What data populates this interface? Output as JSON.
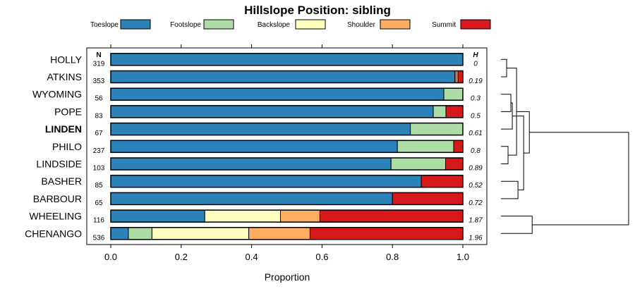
{
  "chart_data": {
    "type": "bar",
    "orientation": "horizontal",
    "stacked": true,
    "title": "Hillslope Position: sibling",
    "xlabel": "Proportion",
    "ylabel": "",
    "xlim": [
      0,
      1
    ],
    "x_ticks": [
      "0.0",
      "0.2",
      "0.4",
      "0.6",
      "0.8",
      "1.0"
    ],
    "x_tick_values": [
      0,
      0.2,
      0.4,
      0.6,
      0.8,
      1.0
    ],
    "n_header": "N",
    "h_header": "H",
    "legend_position": "top",
    "series": [
      {
        "name": "Toeslope",
        "color": "#2b83ba",
        "values": [
          1.0,
          0.977,
          0.946,
          0.916,
          0.851,
          0.814,
          0.796,
          0.882,
          0.8,
          0.267,
          0.05
        ]
      },
      {
        "name": "Footslope",
        "color": "#abdda4",
        "values": [
          0,
          0,
          0.054,
          0.036,
          0.149,
          0.16,
          0.155,
          0,
          0,
          0,
          0.067
        ]
      },
      {
        "name": "Backslope",
        "color": "#ffffbf",
        "values": [
          0,
          0.003,
          0,
          0,
          0,
          0,
          0,
          0,
          0,
          0.215,
          0.275
        ]
      },
      {
        "name": "Shoulder",
        "color": "#fdae61",
        "values": [
          0,
          0.006,
          0,
          0,
          0,
          0,
          0,
          0,
          0,
          0.112,
          0.174
        ]
      },
      {
        "name": "Summit",
        "color": "#d7191c",
        "values": [
          0,
          0.014,
          0,
          0.048,
          0,
          0.026,
          0.049,
          0.118,
          0.2,
          0.406,
          0.434
        ]
      }
    ],
    "categories": [
      "HOLLY",
      "ATKINS",
      "WYOMING",
      "POPE",
      "LINDEN",
      "PHILO",
      "LINDSIDE",
      "BASHER",
      "BARBOUR",
      "WHEELING",
      "CHENANGO"
    ],
    "bold_category": "LINDEN",
    "n": [
      "319",
      "353",
      "56",
      "83",
      "67",
      "237",
      "103",
      "85",
      "65",
      "116",
      "536"
    ],
    "h": [
      "0",
      "0.19",
      "0.3",
      "0.5",
      "0.61",
      "0.8",
      "0.89",
      "0.52",
      "0.72",
      "1.87",
      "1.96"
    ],
    "dendrogram": {
      "leaf_order": [
        0,
        1,
        2,
        3,
        4,
        5,
        6,
        7,
        8,
        9,
        10
      ],
      "merges": [
        {
          "left": 0,
          "right": 1,
          "height": 0.04
        },
        {
          "left": 2,
          "right": 3,
          "height": 0.07
        },
        {
          "left": 5,
          "right": 6,
          "height": 0.05
        },
        {
          "left": 4,
          "right": 12,
          "height": 0.08
        },
        {
          "left": 7,
          "right": 8,
          "height": 0.12
        },
        {
          "left": 9,
          "right": 10,
          "height": 0.22
        },
        {
          "left": 11,
          "right": 13,
          "height": 0.11
        },
        {
          "left": 14,
          "right": 15,
          "height": 0.16
        },
        {
          "left": 17,
          "right": 18,
          "height": 0.2
        },
        {
          "left": 19,
          "right": 16,
          "height": 0.9
        }
      ]
    }
  }
}
